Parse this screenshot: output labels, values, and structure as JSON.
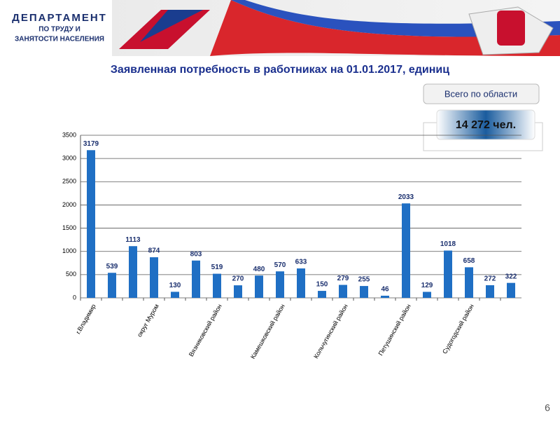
{
  "header": {
    "line1": "ДЕПАРТАМЕНТ",
    "line2": "ПО ТРУДУ И",
    "line3": "ЗАНЯТОСТИ НАСЕЛЕНИЯ"
  },
  "summary": {
    "label": "Всего по области",
    "value": "14 272 чел."
  },
  "page_number": "6",
  "chart_data": {
    "type": "bar",
    "title": "Заявленная потребность в работниках на 01.01.2017, единиц",
    "categories": [
      "г.Владимир",
      null,
      null,
      "округ Муром",
      null,
      null,
      "Вязниковский район",
      null,
      null,
      "Камешковский район",
      null,
      null,
      "Кольчугинский район",
      null,
      null,
      "Петушинский район",
      null,
      null,
      "Судогодский район",
      null,
      null
    ],
    "values": [
      3179,
      539,
      1113,
      874,
      130,
      803,
      519,
      270,
      480,
      570,
      633,
      150,
      279,
      255,
      46,
      2033,
      129,
      1018,
      658,
      272,
      322
    ],
    "color": "#1f6fc4",
    "ylim": [
      0,
      3500
    ],
    "yticks": [
      0,
      500,
      1000,
      1500,
      2000,
      2500,
      3000,
      3500
    ],
    "grid": true
  }
}
